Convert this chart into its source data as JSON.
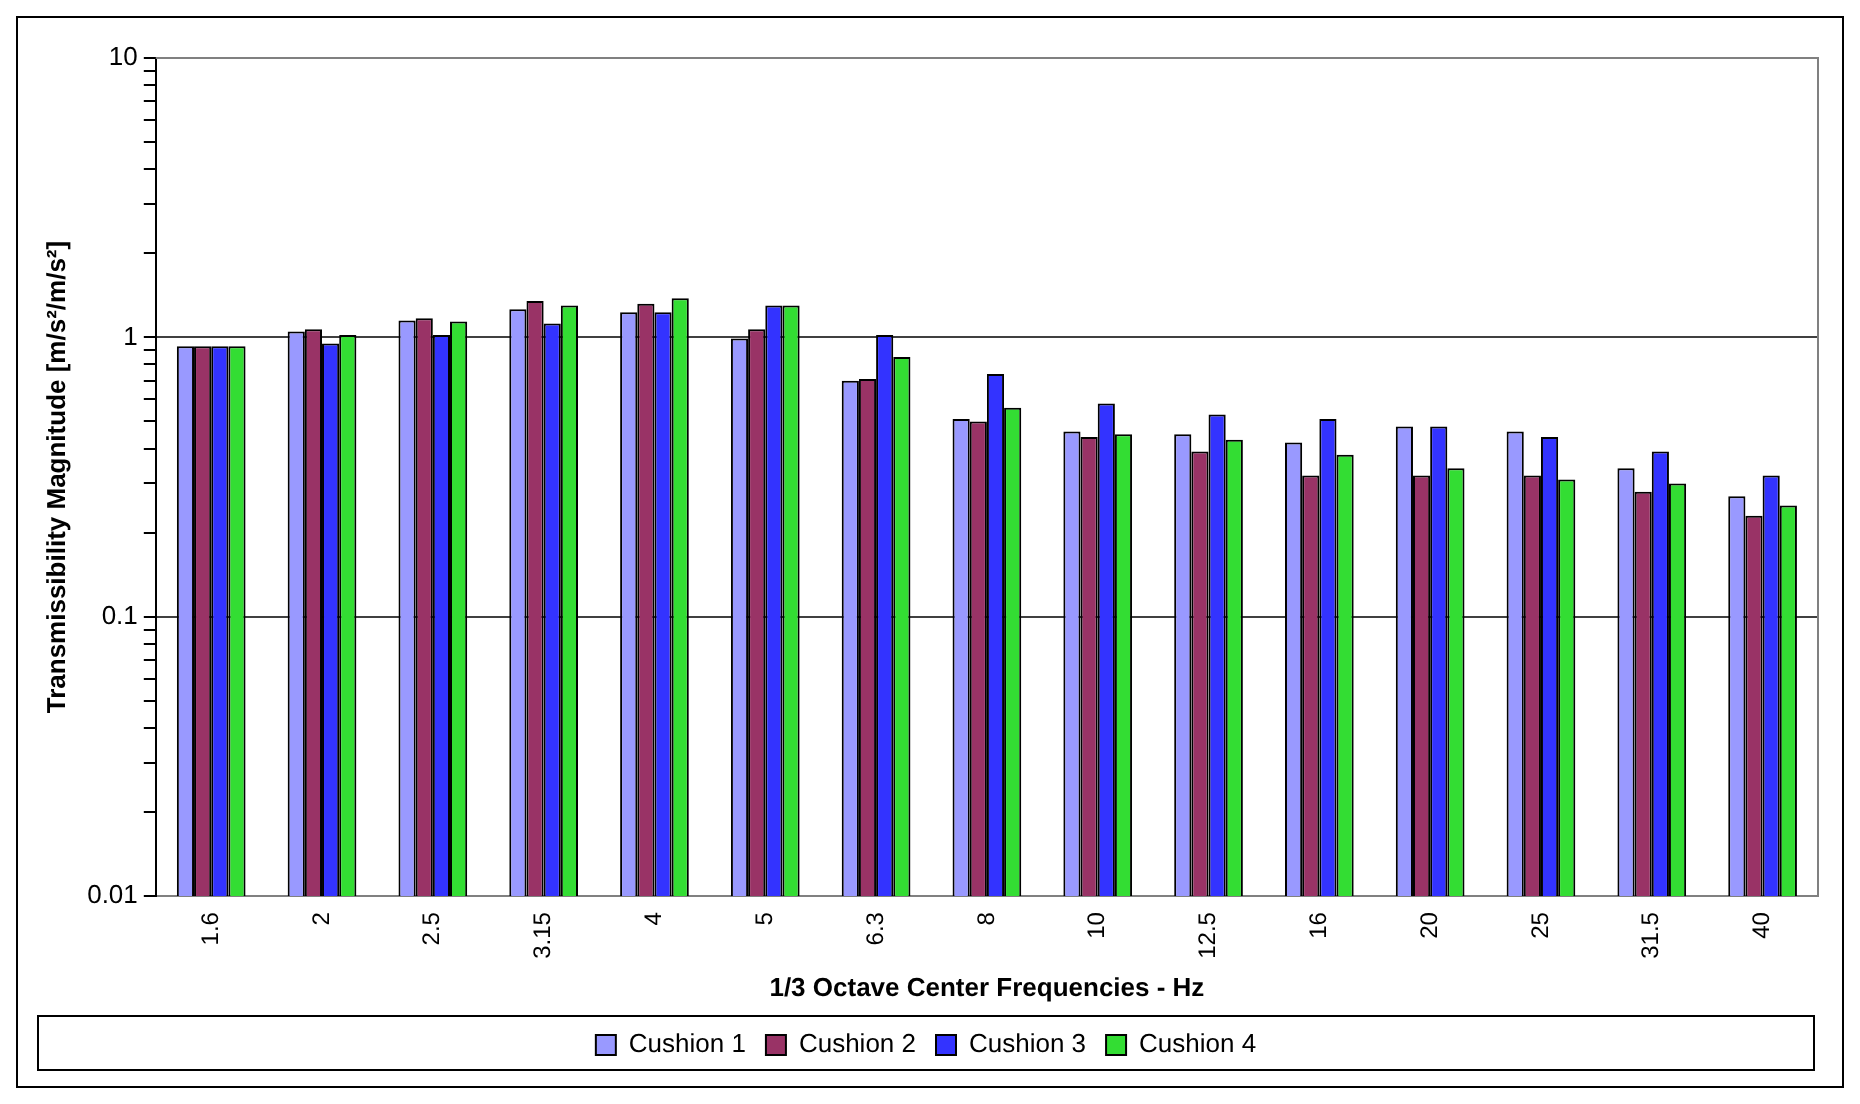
{
  "chart_data": {
    "type": "bar",
    "xlabel": "1/3 Octave Center Frequencies - Hz",
    "ylabel": "Transmissibility Magnitude [m/s²/m/s²]",
    "categories": [
      "1.6",
      "2",
      "2.5",
      "3.15",
      "4",
      "5",
      "6.3",
      "8",
      "10",
      "12.5",
      "16",
      "20",
      "25",
      "31.5",
      "40"
    ],
    "series": [
      {
        "name": "Cushion 1",
        "color": "#9999ff",
        "values": [
          0.93,
          1.05,
          1.15,
          1.26,
          1.23,
          0.99,
          0.7,
          0.51,
          0.46,
          0.45,
          0.42,
          0.48,
          0.46,
          0.34,
          0.27
        ]
      },
      {
        "name": "Cushion 2",
        "color": "#993366",
        "values": [
          0.93,
          1.07,
          1.17,
          1.35,
          1.32,
          1.07,
          0.71,
          0.5,
          0.44,
          0.39,
          0.32,
          0.32,
          0.32,
          0.28,
          0.23
        ]
      },
      {
        "name": "Cushion 3",
        "color": "#3333ff",
        "values": [
          0.93,
          0.95,
          1.02,
          1.12,
          1.23,
          1.3,
          1.02,
          0.74,
          0.58,
          0.53,
          0.51,
          0.48,
          0.44,
          0.39,
          0.32
        ]
      },
      {
        "name": "Cushion 4",
        "color": "#33dd33",
        "values": [
          0.93,
          1.02,
          1.14,
          1.3,
          1.38,
          1.3,
          0.85,
          0.56,
          0.45,
          0.43,
          0.38,
          0.34,
          0.31,
          0.3,
          0.25
        ]
      }
    ],
    "log": "y",
    "ylim": [
      0.01,
      10
    ],
    "yticks": [
      0.01,
      {
        "value": 0.02,
        "label": null
      },
      {
        "value": 0.03,
        "label": null
      },
      {
        "value": 0.04,
        "label": null
      },
      {
        "value": 0.05,
        "label": null
      },
      {
        "value": 0.06,
        "label": null
      },
      {
        "value": 0.07,
        "label": null
      },
      {
        "value": 0.08,
        "label": null
      },
      {
        "value": 0.09,
        "label": null
      },
      0.1,
      {
        "value": 0.2,
        "label": null
      },
      {
        "value": 0.3,
        "label": null
      },
      {
        "value": 0.4,
        "label": null
      },
      {
        "value": 0.5,
        "label": null
      },
      {
        "value": 0.6,
        "label": null
      },
      {
        "value": 0.7,
        "label": null
      },
      {
        "value": 0.8,
        "label": null
      },
      {
        "value": 0.9,
        "label": null
      },
      1,
      {
        "value": 2,
        "label": null
      },
      {
        "value": 3,
        "label": null
      },
      {
        "value": 4,
        "label": null
      },
      {
        "value": 5,
        "label": null
      },
      {
        "value": 6,
        "label": null
      },
      {
        "value": 7,
        "label": null
      },
      {
        "value": 8,
        "label": null
      },
      {
        "value": 9,
        "label": null
      },
      10
    ],
    "grid": "y",
    "legend": "bottom"
  }
}
